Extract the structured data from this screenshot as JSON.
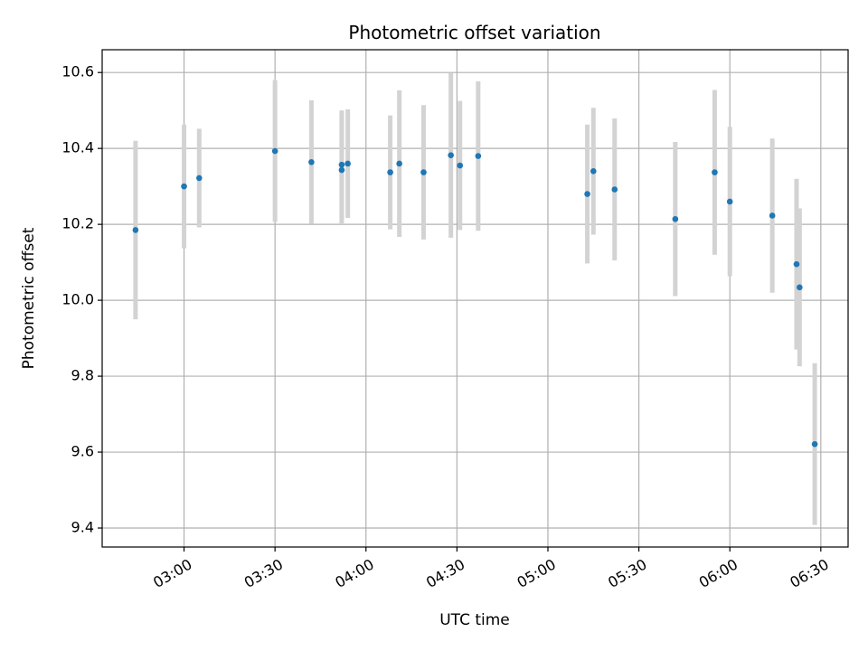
{
  "chart_data": {
    "type": "scatter",
    "title": "Photometric offset variation",
    "xlabel": "UTC time",
    "ylabel": "Photometric offset",
    "x_unit": "time (HH:MM UTC)",
    "xlim": [
      "02:33",
      "06:39"
    ],
    "ylim": [
      9.35,
      10.66
    ],
    "x_ticks": [
      "03:00",
      "03:30",
      "04:00",
      "04:30",
      "05:00",
      "05:30",
      "06:00",
      "06:30"
    ],
    "y_ticks": [
      9.4,
      9.6,
      9.8,
      10.0,
      10.2,
      10.4,
      10.6
    ],
    "y_tick_labels": [
      "9.4",
      "9.6",
      "9.8",
      "10.0",
      "10.2",
      "10.4",
      "10.6"
    ],
    "grid": true,
    "marker_color": "#1f77b4",
    "errorbar_color": "#d3d3d3",
    "points": [
      {
        "x": "02:44",
        "y": 10.185,
        "err": 0.235
      },
      {
        "x": "03:00",
        "y": 10.3,
        "err": 0.163
      },
      {
        "x": "03:05",
        "y": 10.322,
        "err": 0.13
      },
      {
        "x": "03:30",
        "y": 10.393,
        "err": 0.187
      },
      {
        "x": "03:42",
        "y": 10.364,
        "err": 0.163
      },
      {
        "x": "03:52",
        "y": 10.343,
        "err": 0.143
      },
      {
        "x": "03:52",
        "y": 10.357,
        "err": 0.143
      },
      {
        "x": "03:54",
        "y": 10.36,
        "err": 0.143
      },
      {
        "x": "04:08",
        "y": 10.337,
        "err": 0.15
      },
      {
        "x": "04:11",
        "y": 10.36,
        "err": 0.193
      },
      {
        "x": "04:19",
        "y": 10.337,
        "err": 0.177
      },
      {
        "x": "04:28",
        "y": 10.382,
        "err": 0.217
      },
      {
        "x": "04:31",
        "y": 10.355,
        "err": 0.17
      },
      {
        "x": "04:37",
        "y": 10.38,
        "err": 0.197
      },
      {
        "x": "05:13",
        "y": 10.28,
        "err": 0.183
      },
      {
        "x": "05:15",
        "y": 10.34,
        "err": 0.167
      },
      {
        "x": "05:22",
        "y": 10.292,
        "err": 0.187
      },
      {
        "x": "05:42",
        "y": 10.214,
        "err": 0.203
      },
      {
        "x": "05:55",
        "y": 10.337,
        "err": 0.217
      },
      {
        "x": "06:00",
        "y": 10.26,
        "err": 0.197
      },
      {
        "x": "06:14",
        "y": 10.223,
        "err": 0.203
      },
      {
        "x": "06:22",
        "y": 10.095,
        "err": 0.225
      },
      {
        "x": "06:23",
        "y": 10.034,
        "err": 0.208
      },
      {
        "x": "06:28",
        "y": 9.621,
        "err": 0.213
      }
    ]
  }
}
